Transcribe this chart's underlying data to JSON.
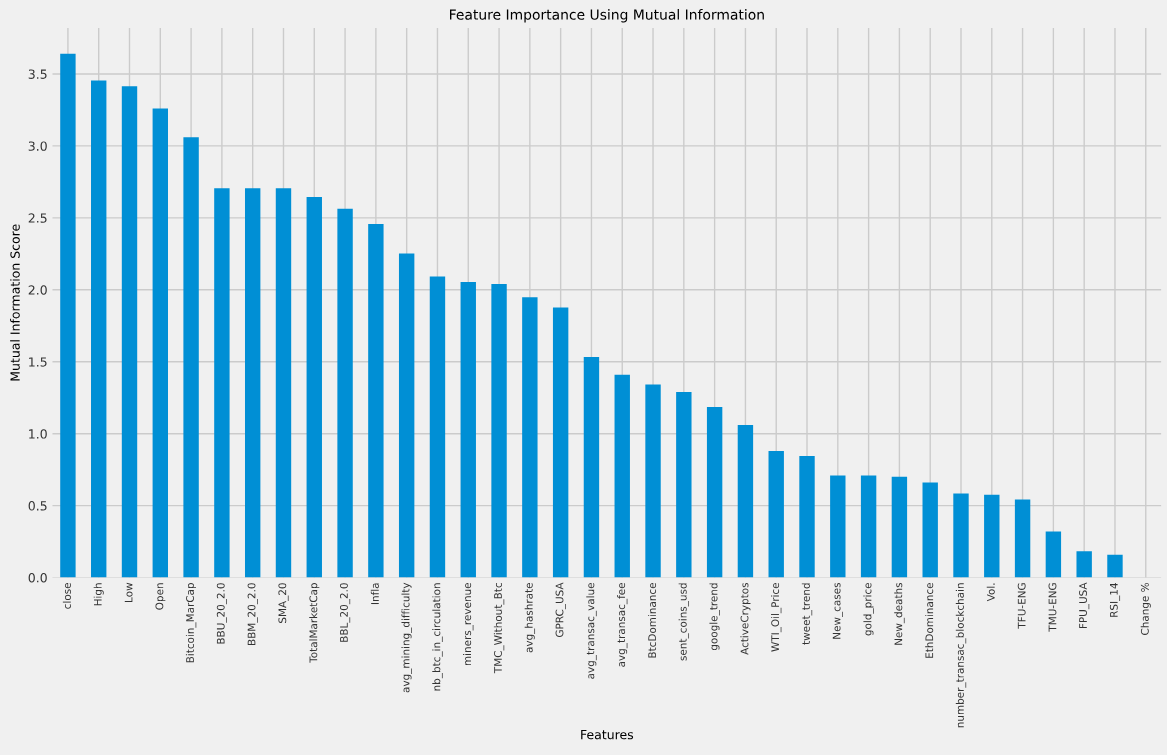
{
  "chart_data": {
    "type": "bar",
    "title": "Feature Importance Using Mutual Information",
    "xlabel": "Features",
    "ylabel": "Mutual Information Score",
    "categories": [
      "close",
      "High",
      "Low",
      "Open",
      "Bitcoin_MarCap",
      "BBU_20_2.0",
      "BBM_20_2.0",
      "SMA_20",
      "TotalMarketCap",
      "BBL_20_2.0",
      "Infla",
      "avg_mining_difficulty",
      "nb_btc_in_circulation",
      "miners_revenue",
      "TMC_Without_Btc",
      "avg_hashrate",
      "GPRC_USA",
      "avg_transac_value",
      "avg_transac_fee",
      "BtcDominance",
      "sent_coins_usd",
      "google_trend",
      "ActiveCryptos",
      "WTI_Oil_Price",
      "tweet_trend",
      "New_cases",
      "gold_price",
      "New_deaths",
      "EthDominance",
      "number_transac_blockchain",
      "Vol.",
      "TFU-ENG",
      "TMU-ENG",
      "FPU_USA",
      "RSI_14",
      "Change %"
    ],
    "values": [
      3.64,
      3.455,
      3.415,
      3.26,
      3.06,
      2.705,
      2.705,
      2.705,
      2.645,
      2.563,
      2.457,
      2.253,
      2.092,
      2.055,
      2.041,
      1.949,
      1.877,
      1.533,
      1.41,
      1.342,
      1.29,
      1.186,
      1.06,
      0.88,
      0.845,
      0.71,
      0.71,
      0.7,
      0.66,
      0.585,
      0.575,
      0.543,
      0.32,
      0.183,
      0.159,
      0
    ],
    "color": "#008fd5",
    "ylim": [
      0,
      3.82
    ],
    "yticks": [
      {
        "value": 0,
        "label": "0.0"
      },
      0.5,
      {
        "value": 1,
        "label": "1.0"
      },
      1.5,
      {
        "value": 2,
        "label": "2.0"
      },
      2.5,
      {
        "value": 3,
        "label": "3.0"
      },
      3.5
    ],
    "grid": true
  }
}
